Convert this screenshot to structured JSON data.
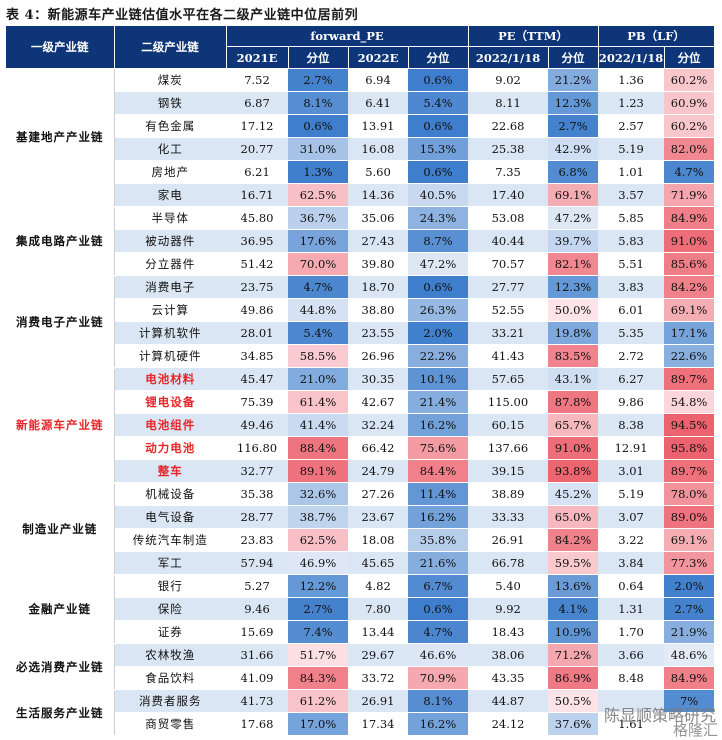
{
  "title": "表 4：新能源车产业链估值水平在各二级产业链中位居前列",
  "headers": {
    "level1": "一级产业链",
    "level2": "二级产业链",
    "groups": [
      "forward_PE",
      "PE（TTM）",
      "PB（LF）"
    ],
    "sub": [
      "2021E",
      "分位",
      "2022E",
      "分位",
      "2022/1/18",
      "分位",
      "2022/1/18",
      "分位"
    ]
  },
  "groups": [
    {
      "name": "基建地产产业链",
      "rows": [
        {
          "name": "煤炭",
          "red": false,
          "v": [
            "7.52",
            "2.7%",
            "6.94",
            "0.6%",
            "9.02",
            "21.2%",
            "1.36",
            "60.2%"
          ]
        },
        {
          "name": "钢铁",
          "red": false,
          "v": [
            "6.87",
            "8.1%",
            "6.41",
            "5.4%",
            "8.11",
            "12.3%",
            "1.23",
            "60.9%"
          ]
        },
        {
          "name": "有色金属",
          "red": false,
          "v": [
            "17.12",
            "0.6%",
            "13.91",
            "0.6%",
            "22.68",
            "2.7%",
            "2.57",
            "60.2%"
          ]
        },
        {
          "name": "化工",
          "red": false,
          "v": [
            "20.77",
            "31.0%",
            "16.08",
            "15.3%",
            "25.38",
            "42.9%",
            "5.19",
            "82.0%"
          ]
        },
        {
          "name": "房地产",
          "red": false,
          "v": [
            "6.21",
            "1.3%",
            "5.60",
            "0.6%",
            "7.35",
            "6.8%",
            "1.01",
            "4.7%"
          ]
        },
        {
          "name": "家电",
          "red": false,
          "v": [
            "16.71",
            "62.5%",
            "14.36",
            "40.5%",
            "17.40",
            "69.1%",
            "3.57",
            "71.9%"
          ]
        }
      ]
    },
    {
      "name": "集成电路产业链",
      "rows": [
        {
          "name": "半导体",
          "red": false,
          "v": [
            "45.80",
            "36.7%",
            "35.06",
            "24.3%",
            "53.08",
            "47.2%",
            "5.85",
            "84.9%"
          ]
        },
        {
          "name": "被动器件",
          "red": false,
          "v": [
            "36.95",
            "17.6%",
            "27.43",
            "8.7%",
            "40.44",
            "39.7%",
            "5.83",
            "91.0%"
          ]
        },
        {
          "name": "分立器件",
          "red": false,
          "v": [
            "51.42",
            "70.0%",
            "39.80",
            "47.2%",
            "70.57",
            "82.1%",
            "5.51",
            "85.6%"
          ]
        }
      ]
    },
    {
      "name": "消费电子产业链",
      "rows": [
        {
          "name": "消费电子",
          "red": false,
          "v": [
            "23.75",
            "4.7%",
            "18.70",
            "0.6%",
            "27.77",
            "12.3%",
            "3.83",
            "84.2%"
          ]
        },
        {
          "name": "云计算",
          "red": false,
          "v": [
            "49.86",
            "44.8%",
            "38.80",
            "26.3%",
            "52.55",
            "50.0%",
            "6.01",
            "69.1%"
          ]
        },
        {
          "name": "计算机软件",
          "red": false,
          "v": [
            "28.01",
            "5.4%",
            "23.55",
            "2.0%",
            "33.21",
            "19.8%",
            "5.35",
            "17.1%"
          ]
        },
        {
          "name": "计算机硬件",
          "red": false,
          "v": [
            "34.85",
            "58.5%",
            "26.96",
            "22.2%",
            "41.43",
            "83.5%",
            "2.72",
            "22.6%"
          ]
        }
      ]
    },
    {
      "name": "新能源车产业链",
      "red": true,
      "rows": [
        {
          "name": "电池材料",
          "red": true,
          "v": [
            "45.47",
            "21.0%",
            "30.35",
            "10.1%",
            "57.65",
            "43.1%",
            "6.27",
            "89.7%"
          ]
        },
        {
          "name": "锂电设备",
          "red": true,
          "v": [
            "75.39",
            "61.4%",
            "42.67",
            "21.4%",
            "115.00",
            "87.8%",
            "9.86",
            "54.8%"
          ]
        },
        {
          "name": "电池组件",
          "red": true,
          "v": [
            "49.46",
            "41.4%",
            "32.24",
            "16.2%",
            "60.15",
            "65.7%",
            "8.38",
            "94.5%"
          ]
        },
        {
          "name": "动力电池",
          "red": true,
          "v": [
            "116.80",
            "88.4%",
            "66.42",
            "75.6%",
            "137.66",
            "91.0%",
            "12.91",
            "95.8%"
          ]
        },
        {
          "name": "整车",
          "red": true,
          "v": [
            "32.77",
            "89.1%",
            "24.79",
            "84.4%",
            "39.15",
            "93.8%",
            "3.01",
            "89.7%"
          ]
        }
      ]
    },
    {
      "name": "制造业产业链",
      "rows": [
        {
          "name": "机械设备",
          "red": false,
          "v": [
            "35.38",
            "32.6%",
            "27.26",
            "11.4%",
            "38.89",
            "45.2%",
            "5.19",
            "78.0%"
          ]
        },
        {
          "name": "电气设备",
          "red": false,
          "v": [
            "28.77",
            "38.7%",
            "23.67",
            "16.2%",
            "33.33",
            "65.0%",
            "3.07",
            "89.0%"
          ]
        },
        {
          "name": "传统汽车制造",
          "red": false,
          "v": [
            "23.83",
            "62.5%",
            "18.08",
            "35.8%",
            "26.91",
            "84.2%",
            "3.22",
            "69.1%"
          ]
        },
        {
          "name": "军工",
          "red": false,
          "v": [
            "57.94",
            "46.9%",
            "45.65",
            "21.6%",
            "66.78",
            "59.5%",
            "3.84",
            "77.3%"
          ]
        }
      ]
    },
    {
      "name": "金融产业链",
      "rows": [
        {
          "name": "银行",
          "red": false,
          "v": [
            "5.27",
            "12.2%",
            "4.82",
            "6.7%",
            "5.40",
            "13.6%",
            "0.64",
            "2.0%"
          ]
        },
        {
          "name": "保险",
          "red": false,
          "v": [
            "9.46",
            "2.7%",
            "7.80",
            "0.6%",
            "9.92",
            "4.1%",
            "1.31",
            "2.7%"
          ]
        },
        {
          "name": "证券",
          "red": false,
          "v": [
            "15.69",
            "7.4%",
            "13.44",
            "4.7%",
            "18.43",
            "10.9%",
            "1.70",
            "21.9%"
          ]
        }
      ]
    },
    {
      "name": "必选消费产业链",
      "rows": [
        {
          "name": "农林牧渔",
          "red": false,
          "v": [
            "31.66",
            "51.7%",
            "29.67",
            "46.6%",
            "38.06",
            "71.2%",
            "3.66",
            "48.6%"
          ]
        },
        {
          "name": "食品饮料",
          "red": false,
          "v": [
            "41.09",
            "84.3%",
            "33.72",
            "70.9%",
            "43.35",
            "86.9%",
            "8.48",
            "84.9%"
          ]
        }
      ]
    },
    {
      "name": "生活服务产业链",
      "rows": [
        {
          "name": "消费者服务",
          "red": false,
          "v": [
            "41.73",
            "61.2%",
            "26.91",
            "8.1%",
            "44.87",
            "50.5%",
            "",
            "7%"
          ]
        },
        {
          "name": "商贸零售",
          "red": false,
          "v": [
            "17.68",
            "17.0%",
            "17.34",
            "16.2%",
            "24.12",
            "37.6%",
            "1.61",
            ""
          ]
        }
      ]
    }
  ],
  "watermark": {
    "line1": "陈显顺策略研究",
    "line2": "格隆汇"
  }
}
